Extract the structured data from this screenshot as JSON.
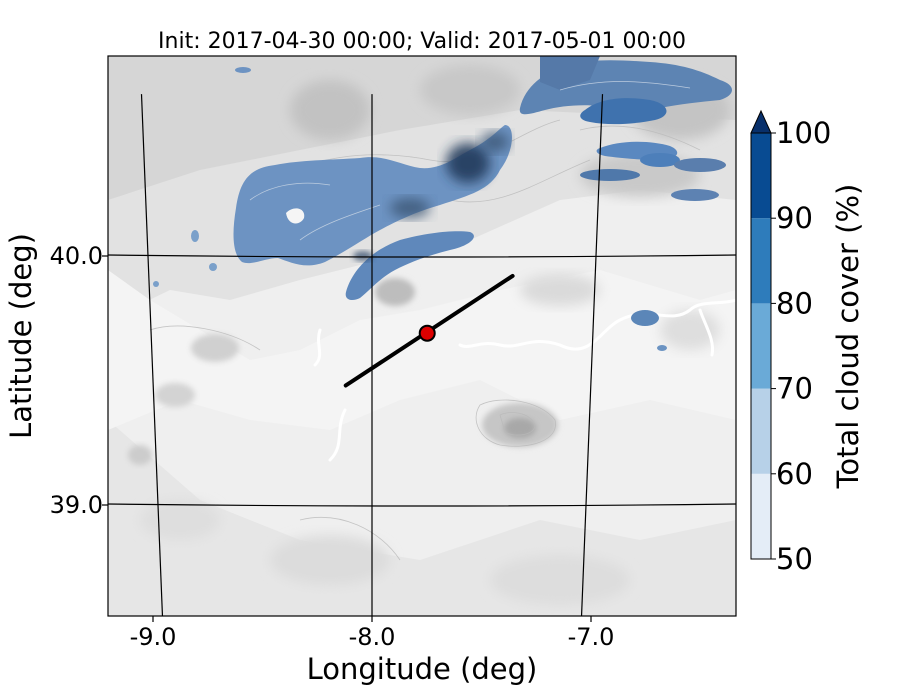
{
  "title": "Init: 2017-04-30 00:00; Valid: 2017-05-01 00:00",
  "x_axis": {
    "label": "Longitude (deg)",
    "ticks": [
      {
        "value": -9.0,
        "label": "-9.0"
      },
      {
        "value": -8.0,
        "label": "-8.0"
      },
      {
        "value": -7.0,
        "label": "-7.0"
      }
    ]
  },
  "y_axis": {
    "label": "Latitude (deg)",
    "ticks": [
      {
        "value": 40.0,
        "label": "40.0"
      },
      {
        "value": 39.0,
        "label": "39.0"
      }
    ]
  },
  "colorbar": {
    "label": "Total cloud cover (%)",
    "levels": [
      {
        "value": 50,
        "label": "50"
      },
      {
        "value": 60,
        "label": "60"
      },
      {
        "value": 70,
        "label": "70"
      },
      {
        "value": 80,
        "label": "80"
      },
      {
        "value": 90,
        "label": "90"
      },
      {
        "value": 100,
        "label": "100"
      }
    ],
    "colors": [
      "#e4edf7",
      "#b7d1e8",
      "#6aaad7",
      "#2e7cbb",
      "#084b92"
    ],
    "extend_color": "#08306b"
  },
  "map": {
    "terrain_shading": "greyscale orography",
    "cloud_color": "#5b85b6",
    "transect": {
      "from": {
        "lon": -8.12,
        "lat": 39.48
      },
      "to": {
        "lon": -7.37,
        "lat": 39.92
      }
    },
    "marker": {
      "lon": -7.75,
      "lat": 39.69,
      "color": "#dd0000"
    }
  }
}
